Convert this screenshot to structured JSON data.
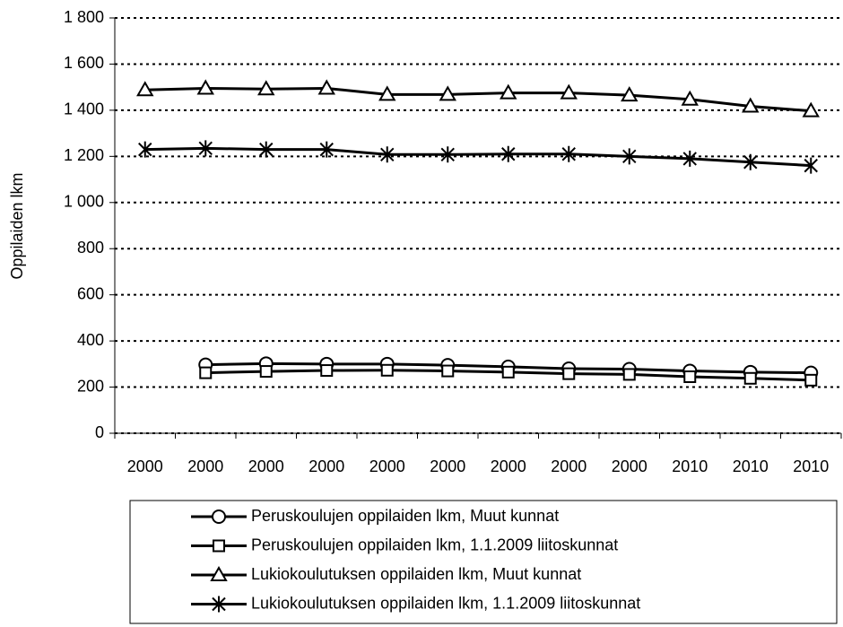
{
  "chart_data": {
    "type": "line",
    "y_label": "Oppilaiden lkm",
    "categories": [
      "2000",
      "2000",
      "2000",
      "2000",
      "2000",
      "2000",
      "2000",
      "2000",
      "2000",
      "2010",
      "2010",
      "2010"
    ],
    "series": [
      {
        "name": "Peruskoulujen oppilaiden lkm, Muut kunnat",
        "color": "#000000",
        "marker": "circle",
        "values": [
          null,
          297,
          302,
          300,
          300,
          295,
          288,
          280,
          278,
          270,
          265,
          262
        ]
      },
      {
        "name": "Peruskoulujen oppilaiden lkm, 1.1.2009 liitoskunnat",
        "color": "#000000",
        "marker": "square",
        "values": [
          null,
          262,
          268,
          272,
          273,
          270,
          265,
          258,
          255,
          245,
          238,
          230
        ]
      },
      {
        "name": "Lukiokoulutuksen oppilaiden lkm, Muut kunnat",
        "color": "#000000",
        "marker": "triangle",
        "values": [
          1488,
          1495,
          1492,
          1495,
          1468,
          1468,
          1475,
          1475,
          1465,
          1447,
          1417,
          1397
        ]
      },
      {
        "name": "Lukiokoulutuksen oppilaiden lkm, 1.1.2009 liitoskunnat",
        "color": "#000000",
        "marker": "asterisk",
        "values": [
          1230,
          1235,
          1230,
          1230,
          1208,
          1208,
          1210,
          1210,
          1200,
          1190,
          1175,
          1160
        ]
      }
    ],
    "ylim": [
      0,
      1800
    ],
    "yticks": [
      0,
      200,
      400,
      600,
      800,
      {
        "value": 1000,
        "label": "1 000"
      },
      {
        "value": 1200,
        "label": "1 200"
      },
      {
        "value": 1400,
        "label": "1 400"
      },
      {
        "value": 1600,
        "label": "1 600"
      },
      {
        "value": 1800,
        "label": "1 800"
      }
    ],
    "grid": true,
    "legend": "bottom"
  }
}
